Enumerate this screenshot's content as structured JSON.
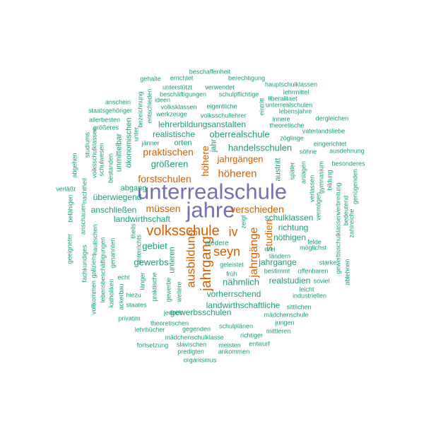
{
  "colors": {
    "purple": "#7570b3",
    "orange": "#d95f02",
    "teal": "#1b9e77",
    "background": "#ffffff"
  },
  "words": [
    {
      "text": "jahre",
      "tier": 1,
      "color": "purple"
    },
    {
      "text": "unterrealschule",
      "tier": 1,
      "color": "purple"
    },
    {
      "text": "volksschule",
      "tier": 2,
      "color": "orange"
    },
    {
      "text": "jahrgang",
      "tier": 2,
      "color": "orange"
    },
    {
      "text": "jahrgänge",
      "tier": 2,
      "color": "orange"
    },
    {
      "text": "seyn",
      "tier": 2,
      "color": "orange"
    },
    {
      "text": "iv",
      "tier": 2,
      "color": "orange"
    },
    {
      "text": "ausbildung",
      "tier": 2,
      "color": "orange"
    },
    {
      "text": "höheren",
      "tier": 3,
      "color": "orange"
    },
    {
      "text": "verschieden",
      "tier": 3,
      "color": "orange"
    },
    {
      "text": "müssen",
      "tier": 3,
      "color": "orange"
    },
    {
      "text": "praktischen",
      "tier": 3,
      "color": "orange"
    },
    {
      "text": "forstschulen",
      "tier": 3,
      "color": "orange"
    },
    {
      "text": "jahrgängen",
      "tier": 3,
      "color": "orange"
    },
    {
      "text": "höhere",
      "tier": 3,
      "color": "orange"
    },
    {
      "text": "studien",
      "tier": 3,
      "color": "orange"
    },
    {
      "text": "oberrealschule",
      "tier": 4,
      "color": "teal"
    },
    {
      "text": "handelsschulen",
      "tier": 4,
      "color": "teal"
    },
    {
      "text": "größeren",
      "tier": 4,
      "color": "teal"
    },
    {
      "text": "gebiet",
      "tier": 4,
      "color": "teal"
    },
    {
      "text": "gewerbs",
      "tier": 4,
      "color": "teal"
    },
    {
      "text": "nähmlich",
      "tier": 4,
      "color": "teal"
    },
    {
      "text": "landwirthschaft",
      "tier": 4,
      "color": "teal"
    },
    {
      "text": "schulklassen",
      "tier": 5,
      "color": "teal"
    },
    {
      "text": "jahrgange",
      "tier": 5,
      "color": "teal"
    },
    {
      "text": "realstudien",
      "tier": 5,
      "color": "teal"
    },
    {
      "text": "vorherrschend",
      "tier": 5,
      "color": "teal"
    },
    {
      "text": "lehrerbildungsanstalten",
      "tier": 5,
      "color": "teal"
    },
    {
      "text": "überwiegend",
      "tier": 5,
      "color": "teal"
    },
    {
      "text": "anschließen",
      "tier": 5,
      "color": "teal"
    },
    {
      "text": "landwirthschaftliche",
      "tier": 5,
      "color": "teal"
    },
    {
      "text": "gewerbsschulen",
      "tier": 5,
      "color": "teal"
    },
    {
      "text": "realistische",
      "tier": 5,
      "color": "teal"
    },
    {
      "text": "richtung",
      "tier": 5,
      "color": "teal"
    },
    {
      "text": "nöthigen",
      "tier": 5,
      "color": "teal"
    },
    {
      "text": "austritt",
      "tier": 5,
      "color": "teal"
    },
    {
      "text": "unteren",
      "tier": 5,
      "color": "teal"
    },
    {
      "text": "ökonomischen",
      "tier": 5,
      "color": "teal"
    },
    {
      "text": "unmittelbar",
      "tier": 5,
      "color": "teal"
    },
    {
      "text": "abgang",
      "tier": 5,
      "color": "teal"
    },
    {
      "text": "orten",
      "tier": 5,
      "color": "teal"
    },
    {
      "text": "jahr",
      "tier": 5,
      "color": "teal"
    },
    {
      "text": "niedere",
      "tier": 6,
      "color": "teal"
    },
    {
      "text": "früh",
      "tier": 6,
      "color": "teal"
    },
    {
      "text": "geleistet",
      "tier": 6,
      "color": "teal"
    },
    {
      "text": "bestimmt",
      "tier": 6,
      "color": "teal"
    },
    {
      "text": "möglichst",
      "tier": 6,
      "color": "teal"
    },
    {
      "text": "offenbaren",
      "tier": 6,
      "color": "teal"
    },
    {
      "text": "industriellen",
      "tier": 6,
      "color": "teal"
    },
    {
      "text": "mädchenschule",
      "tier": 6,
      "color": "teal"
    },
    {
      "text": "mädchenschulklasse",
      "tier": 6,
      "color": "teal"
    },
    {
      "text": "theoretischen",
      "tier": 6,
      "color": "teal"
    },
    {
      "text": "gegenden",
      "tier": 6,
      "color": "teal"
    },
    {
      "text": "schulplänen",
      "tier": 6,
      "color": "teal"
    },
    {
      "text": "richtiger",
      "tier": 6,
      "color": "teal"
    },
    {
      "text": "jungen",
      "tier": 6,
      "color": "teal"
    },
    {
      "text": "mittleren",
      "tier": 6,
      "color": "teal"
    },
    {
      "text": "slavischen",
      "tier": 6,
      "color": "teal"
    },
    {
      "text": "meisten",
      "tier": 6,
      "color": "teal"
    },
    {
      "text": "entwurf",
      "tier": 6,
      "color": "teal"
    },
    {
      "text": "fortsetzung",
      "tier": 6,
      "color": "teal"
    },
    {
      "text": "predigten",
      "tier": 6,
      "color": "teal"
    },
    {
      "text": "ankommen",
      "tier": 6,
      "color": "teal"
    },
    {
      "text": "organismus",
      "tier": 6,
      "color": "teal"
    },
    {
      "text": "lehrbücher",
      "tier": 6,
      "color": "teal"
    },
    {
      "text": "privatim",
      "tier": 6,
      "color": "teal"
    },
    {
      "text": "jedoch",
      "tier": 6,
      "color": "teal"
    },
    {
      "text": "praktische",
      "tier": 6,
      "color": "teal"
    },
    {
      "text": "gewerbe",
      "tier": 6,
      "color": "teal"
    },
    {
      "text": "weitere",
      "tier": 6,
      "color": "teal"
    },
    {
      "text": "länger",
      "tier": 6,
      "color": "teal"
    },
    {
      "text": "hiezu",
      "tier": 6,
      "color": "teal"
    },
    {
      "text": "staates",
      "tier": 6,
      "color": "teal"
    },
    {
      "text": "echt",
      "tier": 6,
      "color": "teal"
    },
    {
      "text": "unterrichts",
      "tier": 6,
      "color": "teal"
    },
    {
      "text": "theils",
      "tier": 6,
      "color": "teal"
    },
    {
      "text": "genannten",
      "tier": 6,
      "color": "teal"
    },
    {
      "text": "nautischen",
      "tier": 6,
      "color": "teal"
    },
    {
      "text": "bestanden",
      "tier": 6,
      "color": "teal"
    },
    {
      "text": "schulwesen",
      "tier": 6,
      "color": "teal"
    },
    {
      "text": "volksschulklassen",
      "tier": 6,
      "color": "teal"
    },
    {
      "text": "jänner",
      "tier": 6,
      "color": "teal"
    },
    {
      "text": "zöglinge",
      "tier": 6,
      "color": "teal"
    },
    {
      "text": "söhne",
      "tier": 6,
      "color": "teal"
    },
    {
      "text": "eingerichtet",
      "tier": 6,
      "color": "teal"
    },
    {
      "text": "ausdehnung",
      "tier": 6,
      "color": "teal"
    },
    {
      "text": "besonderes",
      "tier": 6,
      "color": "teal"
    },
    {
      "text": "vaterlandsliebe",
      "tier": 6,
      "color": "teal"
    },
    {
      "text": "dergleichen",
      "tier": 6,
      "color": "teal"
    },
    {
      "text": "innere",
      "tier": 6,
      "color": "teal"
    },
    {
      "text": "lebensjahre",
      "tier": 6,
      "color": "teal"
    },
    {
      "text": "unterrealschulen",
      "tier": 6,
      "color": "teal"
    },
    {
      "text": "theoretische",
      "tier": 6,
      "color": "teal"
    },
    {
      "text": "lehrmittel",
      "tier": 6,
      "color": "teal"
    },
    {
      "text": "liberalitaet",
      "tier": 6,
      "color": "teal"
    },
    {
      "text": "hauptschulklassen",
      "tier": 6,
      "color": "teal"
    },
    {
      "text": "berechtigung",
      "tier": 6,
      "color": "teal"
    },
    {
      "text": "beschaffenheit",
      "tier": 6,
      "color": "teal"
    },
    {
      "text": "errichtet",
      "tier": 6,
      "color": "teal"
    },
    {
      "text": "gehalte",
      "tier": 6,
      "color": "teal"
    },
    {
      "text": "unterstützt",
      "tier": 6,
      "color": "teal"
    },
    {
      "text": "verwendet",
      "tier": 6,
      "color": "teal"
    },
    {
      "text": "beschäftigungen",
      "tier": 6,
      "color": "teal"
    },
    {
      "text": "schulpflichtige",
      "tier": 6,
      "color": "teal"
    },
    {
      "text": "volksklassen",
      "tier": 6,
      "color": "teal"
    },
    {
      "text": "eigentliche",
      "tier": 6,
      "color": "teal"
    },
    {
      "text": "werkzeuge",
      "tier": 6,
      "color": "teal"
    },
    {
      "text": "volksschullehrer",
      "tier": 6,
      "color": "teal"
    },
    {
      "text": "ideen",
      "tier": 6,
      "color": "teal"
    },
    {
      "text": "anschein",
      "tier": 6,
      "color": "teal"
    },
    {
      "text": "staatsgehöriger",
      "tier": 6,
      "color": "teal"
    },
    {
      "text": "allerbesten",
      "tier": 6,
      "color": "teal"
    },
    {
      "text": "größeres",
      "tier": 6,
      "color": "teal"
    },
    {
      "text": "bezeichnung",
      "tier": 6,
      "color": "teal"
    },
    {
      "text": "entschieden",
      "tier": 6,
      "color": "teal"
    },
    {
      "text": "unter",
      "tier": 6,
      "color": "teal"
    },
    {
      "text": "studiums",
      "tier": 6,
      "color": "teal"
    },
    {
      "text": "abgehen",
      "tier": 6,
      "color": "teal"
    },
    {
      "text": "nachtheil",
      "tier": 6,
      "color": "teal"
    },
    {
      "text": "verläßt",
      "tier": 6,
      "color": "teal"
    },
    {
      "text": "befähigen",
      "tier": 6,
      "color": "teal"
    },
    {
      "text": "anschauen",
      "tier": 6,
      "color": "teal"
    },
    {
      "text": "geeigneter",
      "tier": 6,
      "color": "teal"
    },
    {
      "text": "fachkundiges",
      "tier": 6,
      "color": "teal"
    },
    {
      "text": "galiziens",
      "tier": 6,
      "color": "teal"
    },
    {
      "text": "vollkommen",
      "tier": 6,
      "color": "teal"
    },
    {
      "text": "lebensbeschäftigungen",
      "tier": 6,
      "color": "teal"
    },
    {
      "text": "katholiken",
      "tier": 6,
      "color": "teal"
    },
    {
      "text": "ackerbau",
      "tier": 6,
      "color": "teal"
    },
    {
      "text": "gymnasium",
      "tier": 6,
      "color": "teal"
    },
    {
      "text": "später",
      "tier": 6,
      "color": "teal"
    },
    {
      "text": "anlagen",
      "tier": 6,
      "color": "teal"
    },
    {
      "text": "verlassen",
      "tier": 6,
      "color": "teal"
    },
    {
      "text": "vermögen",
      "tier": 6,
      "color": "teal"
    },
    {
      "text": "bildung",
      "tier": 6,
      "color": "teal"
    },
    {
      "text": "verbreitung",
      "tier": 6,
      "color": "teal"
    },
    {
      "text": "bedeutend",
      "tier": 6,
      "color": "teal"
    },
    {
      "text": "genügenden",
      "tier": 6,
      "color": "teal"
    },
    {
      "text": "zahlreiche",
      "tier": 6,
      "color": "teal"
    },
    {
      "text": "gewerbsschulklassen",
      "tier": 6,
      "color": "teal"
    },
    {
      "text": "starke",
      "tier": 6,
      "color": "teal"
    },
    {
      "text": "soviel",
      "tier": 6,
      "color": "teal"
    },
    {
      "text": "ablehnen",
      "tier": 6,
      "color": "teal"
    },
    {
      "text": "leicht",
      "tier": 6,
      "color": "teal"
    },
    {
      "text": "sittlichen",
      "tier": 6,
      "color": "teal"
    },
    {
      "text": "felde",
      "tier": 6,
      "color": "teal"
    },
    {
      "text": "drei",
      "tier": 6,
      "color": "teal"
    },
    {
      "text": "ländern",
      "tier": 6,
      "color": "teal"
    },
    {
      "text": "zeigt",
      "tier": 6,
      "color": "teal"
    },
    {
      "text": "eintritt",
      "tier": 6,
      "color": "teal"
    }
  ]
}
